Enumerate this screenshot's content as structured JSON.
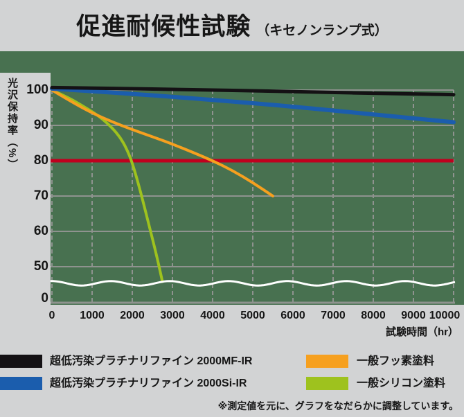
{
  "title": {
    "main": "促進耐候性試験",
    "sub": "（キセノンランプ式）"
  },
  "colors": {
    "page_bg": "#d2d3d4",
    "panel_bg": "#487150",
    "grid": "#8f938f",
    "threshold_red": "#c0001e",
    "axis_break_wave": "#ffffff",
    "text": "#161616"
  },
  "chart_data": {
    "type": "line",
    "title": "促進耐候性試験（キセノンランプ式）",
    "xlabel": "試験時間（hr）",
    "ylabel": "光沢保持率（%）",
    "xlim": [
      0,
      10000
    ],
    "x_ticks": [
      0,
      1000,
      2000,
      3000,
      4000,
      5000,
      6000,
      7000,
      8000,
      9000,
      10000
    ],
    "y_ticks": [
      100,
      90,
      80,
      70,
      60,
      50,
      0
    ],
    "y_axis_break_between": [
      50,
      0
    ],
    "grid": "on",
    "threshold_line": {
      "value": 80,
      "color": "#c0001e"
    },
    "series": [
      {
        "name": "超低汚染プラチナリファイン 2000MF-IR",
        "color": "#141114",
        "stroke_width": 5,
        "points": [
          [
            0,
            100.7
          ],
          [
            1000,
            100.55
          ],
          [
            2000,
            100.4
          ],
          [
            3000,
            100.2
          ],
          [
            4000,
            100.0
          ],
          [
            5000,
            99.8
          ],
          [
            6000,
            99.55
          ],
          [
            7000,
            99.3
          ],
          [
            8000,
            99.1
          ],
          [
            9000,
            98.9
          ],
          [
            10000,
            98.7
          ]
        ]
      },
      {
        "name": "超低汚染プラチナリファイン 2000Si-IR",
        "color": "#1b5dad",
        "stroke_width": 6,
        "points": [
          [
            0,
            100.4
          ],
          [
            1000,
            99.7
          ],
          [
            2000,
            98.9
          ],
          [
            3000,
            98.1
          ],
          [
            4000,
            97.2
          ],
          [
            5000,
            96.3
          ],
          [
            6000,
            95.3
          ],
          [
            7000,
            94.2
          ],
          [
            8000,
            93.1
          ],
          [
            9000,
            92.0
          ],
          [
            10000,
            90.9
          ]
        ]
      },
      {
        "name": "一般フッ素塗料",
        "color": "#f6a01f",
        "stroke_width": 4,
        "points": [
          [
            0,
            100
          ],
          [
            500,
            96.6
          ],
          [
            1000,
            93.5
          ],
          [
            1500,
            91.0
          ],
          [
            2000,
            88.8
          ],
          [
            2500,
            86.8
          ],
          [
            3000,
            84.7
          ],
          [
            3500,
            82.4
          ],
          [
            4000,
            80.0
          ],
          [
            4500,
            77.2
          ],
          [
            5000,
            73.8
          ],
          [
            5500,
            70.0
          ]
        ]
      },
      {
        "name": "一般シリコン塗料",
        "color": "#9ec21e",
        "stroke_width": 4,
        "points": [
          [
            0,
            100
          ],
          [
            400,
            97.9
          ],
          [
            800,
            95.3
          ],
          [
            1200,
            92.4
          ],
          [
            1500,
            89.3
          ],
          [
            1700,
            86.6
          ],
          [
            1850,
            83.6
          ],
          [
            2000,
            79.5
          ],
          [
            2200,
            71.5
          ],
          [
            2400,
            62.5
          ],
          [
            2600,
            53.5
          ],
          [
            2750,
            45.8
          ]
        ]
      }
    ]
  },
  "legend": {
    "rows": [
      {
        "left_series": 0,
        "right_series": 2
      },
      {
        "left_series": 1,
        "right_series": 3
      }
    ]
  },
  "footnote": {
    "text": "※測定値を元に、グラフをなだらかに調整しています。"
  }
}
